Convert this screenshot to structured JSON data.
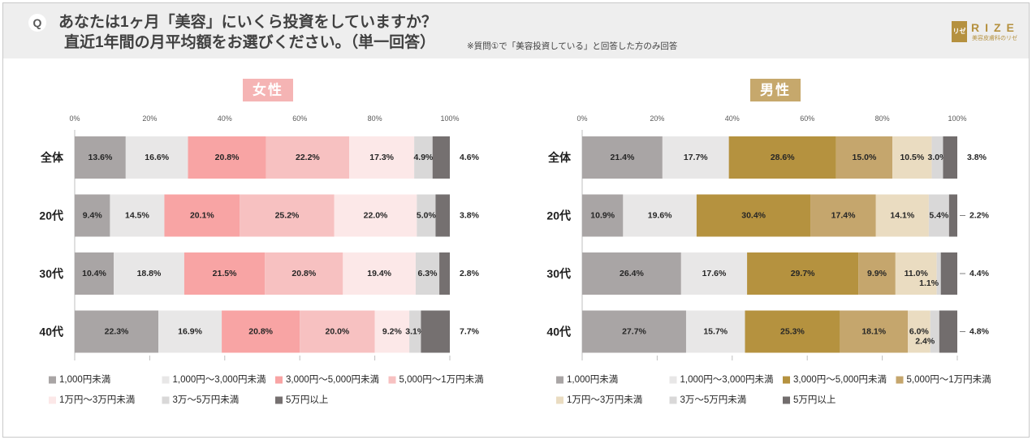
{
  "header": {
    "q_badge": "Q",
    "question_line1": "あなたは1ヶ月「美容」にいくら投資をしていますか？",
    "question_line2": "直近1年間の月平均額をお選びください。（単一回答）",
    "note": "※質問①で「美容投資している」と回答した方のみ回答"
  },
  "logo": {
    "mark": "リゼ",
    "wordmark": "RIZE",
    "tagline": "美容皮膚科のリゼ"
  },
  "chart_data": [
    {
      "type": "bar",
      "stacked": true,
      "horizontal": true,
      "title": "女性",
      "title_color": "#f5b4b4",
      "categories": [
        "全体",
        "20代",
        "30代",
        "40代"
      ],
      "xlim": [
        0,
        100
      ],
      "x_tick_labels": [
        "0%",
        "20%",
        "40%",
        "60%",
        "80%",
        "100%"
      ],
      "legend": "bottom",
      "series": [
        {
          "name": "1,000円未満",
          "color": "#a9a5a5",
          "values": [
            13.6,
            9.4,
            10.4,
            22.3
          ]
        },
        {
          "name": "1,000円～3,000円未満",
          "color": "#e8e7e7",
          "values": [
            16.6,
            14.5,
            18.8,
            16.9
          ]
        },
        {
          "name": "3,000円～5,000円未満",
          "color": "#f8a4a4",
          "values": [
            20.8,
            20.1,
            21.5,
            20.8
          ]
        },
        {
          "name": "5,000円～1万円未満",
          "color": "#f7c1c1",
          "values": [
            22.2,
            25.2,
            20.8,
            20.0
          ]
        },
        {
          "name": "1万円～3万円未満",
          "color": "#fce8e8",
          "values": [
            17.3,
            22.0,
            19.4,
            9.2
          ]
        },
        {
          "name": "3万～5万円未満",
          "color": "#d9d8d8",
          "values": [
            4.9,
            5.0,
            6.3,
            3.1
          ]
        },
        {
          "name": "5万円以上",
          "color": "#757070",
          "values": [
            4.6,
            3.8,
            2.8,
            7.7
          ]
        }
      ]
    },
    {
      "type": "bar",
      "stacked": true,
      "horizontal": true,
      "title": "男性",
      "title_color": "#c6a86c",
      "categories": [
        "全体",
        "20代",
        "30代",
        "40代"
      ],
      "xlim": [
        0,
        100
      ],
      "x_tick_labels": [
        "0%",
        "20%",
        "40%",
        "60%",
        "80%",
        "100%"
      ],
      "legend": "bottom",
      "series": [
        {
          "name": "1,000円未満",
          "color": "#a9a5a5",
          "values": [
            21.4,
            10.9,
            26.4,
            27.7
          ]
        },
        {
          "name": "1,000円～3,000円未満",
          "color": "#e8e7e7",
          "values": [
            17.7,
            19.6,
            17.6,
            15.7
          ]
        },
        {
          "name": "3,000円～5,000円未満",
          "color": "#b5923f",
          "values": [
            28.6,
            30.4,
            29.7,
            25.3
          ]
        },
        {
          "name": "5,000円～1万円未満",
          "color": "#c5a66d",
          "values": [
            15.0,
            17.4,
            9.9,
            18.1
          ]
        },
        {
          "name": "1万円～3万円未満",
          "color": "#eadcc1",
          "values": [
            10.5,
            14.1,
            11.0,
            6.0
          ]
        },
        {
          "name": "3万～5万円未満",
          "color": "#d9d8d8",
          "values": [
            3.0,
            5.4,
            1.1,
            2.4
          ]
        },
        {
          "name": "5万円以上",
          "color": "#726d6d",
          "values": [
            3.8,
            2.2,
            4.4,
            4.8
          ]
        }
      ]
    }
  ]
}
